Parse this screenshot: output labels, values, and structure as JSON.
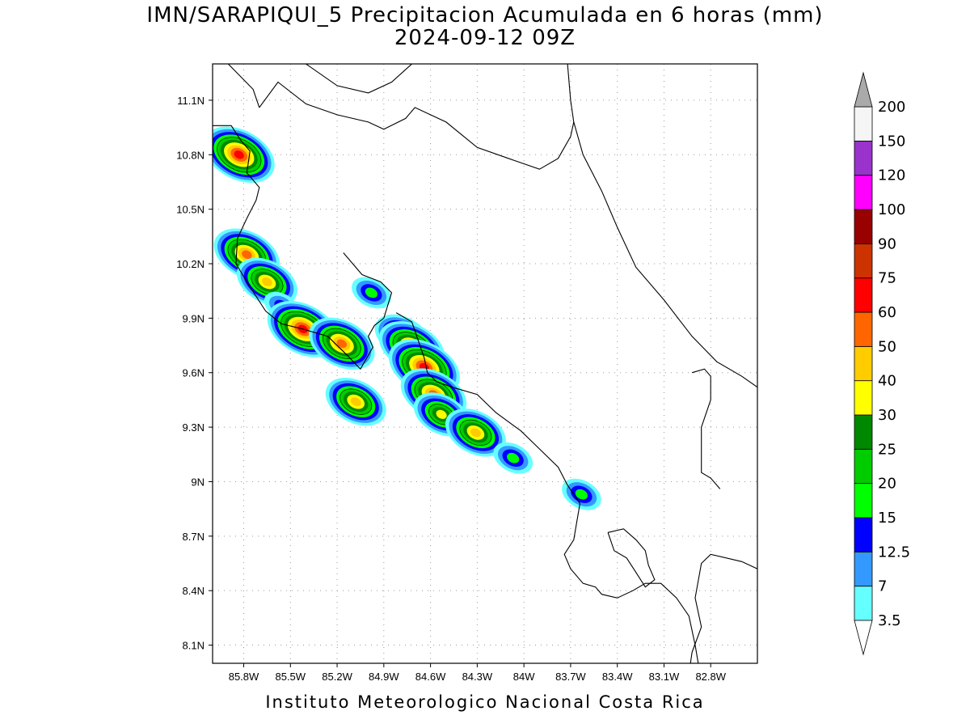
{
  "title": {
    "line1": "IMN/SARAPIQUI_5 Precipitacion Acumulada en 6 horas (mm)",
    "line2": "2024-09-12 09Z"
  },
  "footer": "Instituto Meteorologico Nacional Costa Rica",
  "map": {
    "lon_range": [
      -86.0,
      -82.5
    ],
    "lat_range": [
      8.0,
      11.3
    ],
    "lon_ticks": [
      {
        "v": -85.8,
        "label": "85.8W"
      },
      {
        "v": -85.5,
        "label": "85.5W"
      },
      {
        "v": -85.2,
        "label": "85.2W"
      },
      {
        "v": -84.9,
        "label": "84.9W"
      },
      {
        "v": -84.6,
        "label": "84.6W"
      },
      {
        "v": -84.3,
        "label": "84.3W"
      },
      {
        "v": -84.0,
        "label": "84W"
      },
      {
        "v": -83.7,
        "label": "83.7W"
      },
      {
        "v": -83.4,
        "label": "83.4W"
      },
      {
        "v": -83.1,
        "label": "83.1W"
      },
      {
        "v": -82.8,
        "label": "82.8W"
      }
    ],
    "lat_ticks": [
      {
        "v": 11.1,
        "label": "11.1N"
      },
      {
        "v": 10.8,
        "label": "10.8N"
      },
      {
        "v": 10.5,
        "label": "10.5N"
      },
      {
        "v": 10.2,
        "label": "10.2N"
      },
      {
        "v": 9.9,
        "label": "9.9N"
      },
      {
        "v": 9.6,
        "label": "9.6N"
      },
      {
        "v": 9.3,
        "label": "9.3N"
      },
      {
        "v": 9.0,
        "label": "9N"
      },
      {
        "v": 8.7,
        "label": "8.7N"
      },
      {
        "v": 8.4,
        "label": "8.4N"
      },
      {
        "v": 8.1,
        "label": "8.1N"
      }
    ],
    "grid": true
  },
  "colorbar": {
    "levels": [
      "3.5",
      "7",
      "12.5",
      "15",
      "20",
      "25",
      "30",
      "40",
      "50",
      "60",
      "75",
      "90",
      "100",
      "120",
      "150",
      "200"
    ],
    "colors": [
      "#66ffff",
      "#3399ff",
      "#0000ff",
      "#00ff00",
      "#00cc00",
      "#008800",
      "#ffff00",
      "#ffcc00",
      "#ff6600",
      "#ff0000",
      "#cc3300",
      "#990000",
      "#ff00ff",
      "#9933cc",
      "#f5f5f5"
    ],
    "over_color": "#aaaaaa",
    "under_color": "#ffffff"
  },
  "colors": {
    "c1": "#66ffff",
    "c2": "#3399ff",
    "c3": "#0000ff",
    "c4": "#00ff00",
    "c5": "#00cc00",
    "c6": "#008800",
    "c7": "#ffff00",
    "c8": "#ffcc00",
    "c9": "#ff6600",
    "c10": "#ff0000"
  },
  "precip_cells": [
    {
      "lon": -85.83,
      "lat": 10.8,
      "peak": 60
    },
    {
      "lon": -85.78,
      "lat": 10.25,
      "peak": 50
    },
    {
      "lon": -85.65,
      "lat": 10.1,
      "peak": 40
    },
    {
      "lon": -85.56,
      "lat": 9.97,
      "peak": 12.5
    },
    {
      "lon": -85.42,
      "lat": 9.84,
      "peak": 60
    },
    {
      "lon": -85.17,
      "lat": 9.76,
      "peak": 50
    },
    {
      "lon": -84.98,
      "lat": 10.04,
      "peak": 15
    },
    {
      "lon": -84.78,
      "lat": 9.8,
      "peak": 30
    },
    {
      "lon": -84.72,
      "lat": 9.74,
      "peak": 50
    },
    {
      "lon": -84.64,
      "lat": 9.63,
      "peak": 60
    },
    {
      "lon": -84.58,
      "lat": 9.48,
      "peak": 50
    },
    {
      "lon": -84.53,
      "lat": 9.37,
      "peak": 30
    },
    {
      "lon": -85.08,
      "lat": 9.44,
      "peak": 40
    },
    {
      "lon": -84.31,
      "lat": 9.27,
      "peak": 40
    },
    {
      "lon": -84.07,
      "lat": 9.13,
      "peak": 15
    },
    {
      "lon": -83.63,
      "lat": 8.93,
      "peak": 15
    }
  ]
}
